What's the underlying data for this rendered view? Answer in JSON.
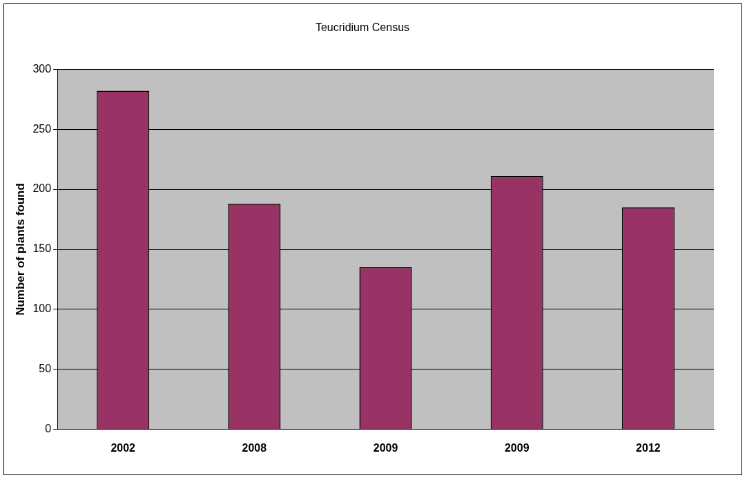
{
  "chart_data": {
    "type": "bar",
    "title": "Teucridium Census",
    "ylabel": "Number of plants found",
    "categories": [
      "2002",
      "2008",
      "2009",
      "2009",
      "2012"
    ],
    "values": [
      282,
      188,
      135,
      211,
      185
    ],
    "color": "#993366",
    "ylim": [
      0,
      300
    ],
    "yticks": [
      0,
      50,
      100,
      150,
      200,
      250,
      300
    ],
    "grid": "y",
    "legend": false
  }
}
